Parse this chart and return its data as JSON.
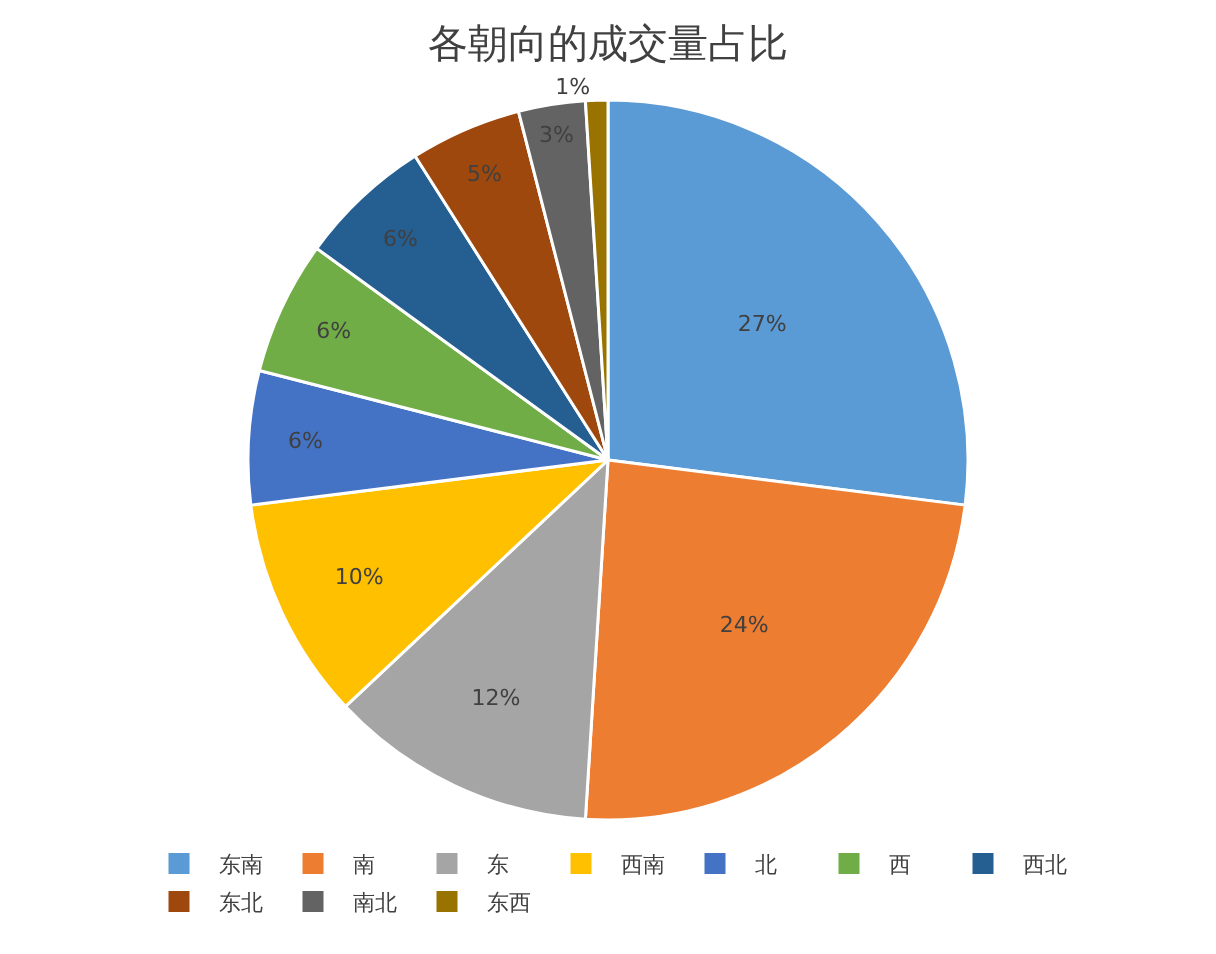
{
  "chart_data": {
    "type": "pie",
    "title": "各朝向的成交量占比",
    "categories": [
      "东南",
      "南",
      "东",
      "西南",
      "北",
      "西",
      "西北",
      "东北",
      "南北",
      "东西"
    ],
    "values": [
      27,
      24,
      12,
      10,
      6,
      6,
      6,
      5,
      3,
      1
    ],
    "value_labels": [
      "27%",
      "24%",
      "12%",
      "10%",
      "6%",
      "6%",
      "6%",
      "5%",
      "3%",
      "1%"
    ],
    "colors": [
      "#5b9bd5",
      "#ed7d31",
      "#a5a5a5",
      "#ffc000",
      "#4472c4",
      "#70ad47",
      "#255e91",
      "#9e480e",
      "#636363",
      "#997300"
    ],
    "legend": "bottom"
  }
}
